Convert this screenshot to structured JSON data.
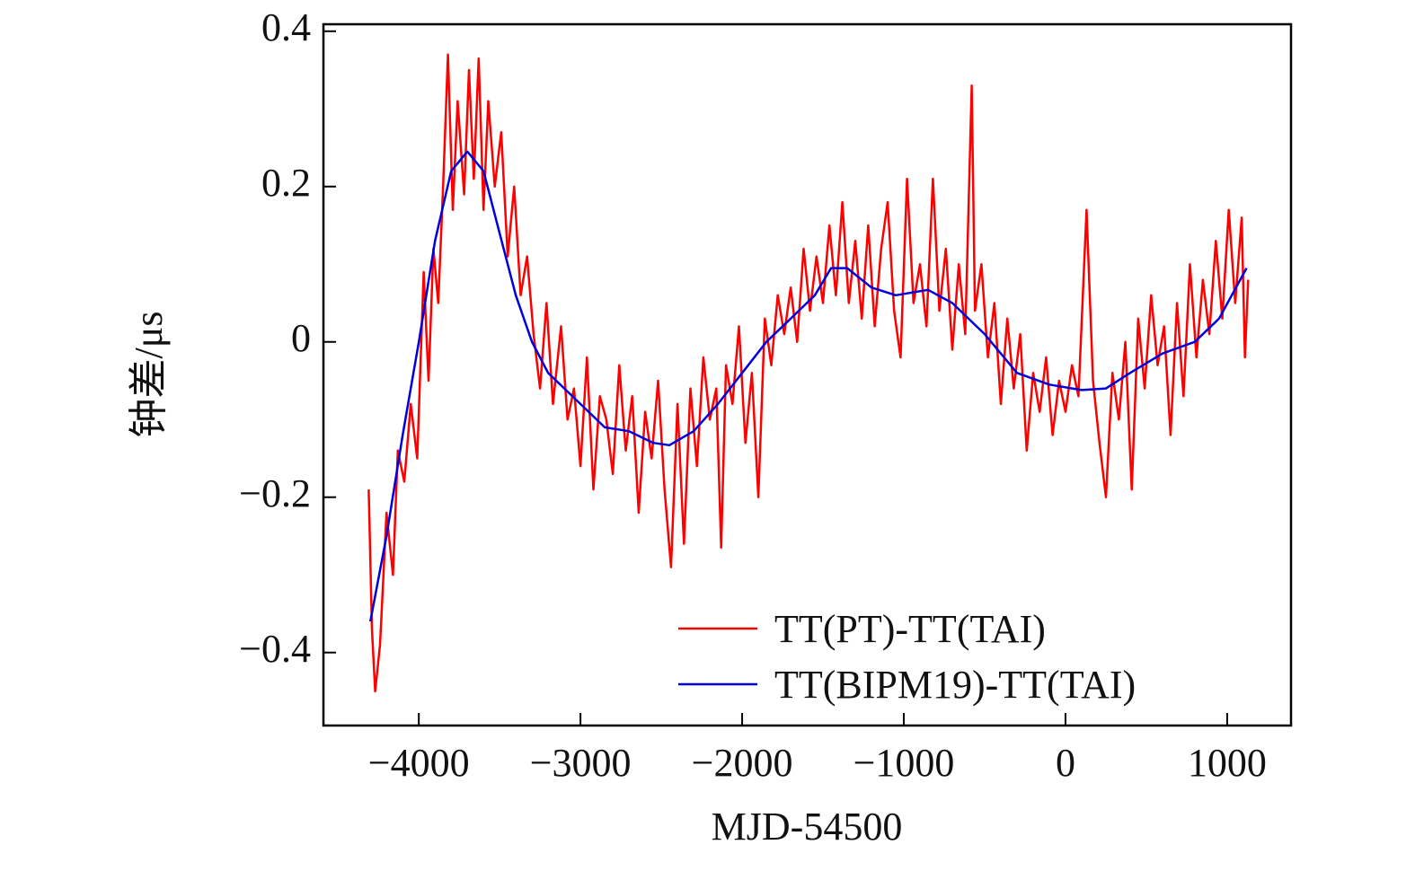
{
  "chart_data": {
    "type": "line",
    "xlabel": "MJD-54500",
    "ylabel": "钟差/μs",
    "xlim": [
      -4590,
      1395
    ],
    "ylim": [
      -0.494,
      0.409
    ],
    "xticks": [
      {
        "value": -4000,
        "label": "−4000"
      },
      {
        "value": -3000,
        "label": "−3000"
      },
      {
        "value": -2000,
        "label": "−2000"
      },
      {
        "value": -1000,
        "label": "−1000"
      },
      0,
      1000
    ],
    "yticks": [
      {
        "value": -0.4,
        "label": "−0.4"
      },
      {
        "value": -0.2,
        "label": "−0.2"
      },
      0,
      0.2,
      0.4
    ],
    "grid": false,
    "legend": "lower right",
    "series": [
      {
        "name": "TT(PT)-TT(TAI)",
        "color": "#ff0000",
        "x": [
          -4310,
          -4290,
          -4270,
          -4240,
          -4200,
          -4160,
          -4130,
          -4090,
          -4050,
          -4010,
          -3970,
          -3940,
          -3910,
          -3880,
          -3850,
          -3820,
          -3790,
          -3760,
          -3720,
          -3690,
          -3660,
          -3630,
          -3600,
          -3570,
          -3530,
          -3490,
          -3450,
          -3410,
          -3370,
          -3330,
          -3290,
          -3250,
          -3210,
          -3170,
          -3120,
          -3080,
          -3040,
          -3000,
          -2960,
          -2920,
          -2880,
          -2840,
          -2800,
          -2760,
          -2720,
          -2680,
          -2640,
          -2600,
          -2560,
          -2520,
          -2480,
          -2440,
          -2400,
          -2360,
          -2320,
          -2280,
          -2240,
          -2200,
          -2160,
          -2130,
          -2100,
          -2060,
          -2020,
          -1980,
          -1940,
          -1900,
          -1860,
          -1820,
          -1780,
          -1740,
          -1700,
          -1660,
          -1620,
          -1580,
          -1540,
          -1500,
          -1460,
          -1420,
          -1380,
          -1340,
          -1300,
          -1260,
          -1220,
          -1180,
          -1140,
          -1100,
          -1060,
          -1020,
          -980,
          -940,
          -900,
          -860,
          -820,
          -780,
          -740,
          -700,
          -660,
          -620,
          -580,
          -560,
          -520,
          -480,
          -440,
          -400,
          -360,
          -320,
          -280,
          -240,
          -200,
          -160,
          -120,
          -80,
          -40,
          0,
          40,
          80,
          130,
          170,
          210,
          250,
          290,
          330,
          370,
          410,
          450,
          490,
          530,
          570,
          610,
          650,
          690,
          730,
          770,
          810,
          850,
          890,
          930,
          970,
          1010,
          1050,
          1090,
          1110,
          1130
        ],
        "values": [
          -0.19,
          -0.37,
          -0.45,
          -0.39,
          -0.22,
          -0.3,
          -0.14,
          -0.18,
          -0.08,
          -0.15,
          0.09,
          -0.05,
          0.12,
          0.05,
          0.2,
          0.37,
          0.17,
          0.31,
          0.19,
          0.35,
          0.21,
          0.365,
          0.17,
          0.31,
          0.2,
          0.27,
          0.11,
          0.2,
          0.06,
          0.11,
          0.01,
          -0.06,
          0.05,
          -0.08,
          0.02,
          -0.1,
          -0.06,
          -0.16,
          -0.02,
          -0.19,
          -0.07,
          -0.1,
          -0.17,
          -0.03,
          -0.14,
          -0.07,
          -0.22,
          -0.09,
          -0.15,
          -0.05,
          -0.19,
          -0.29,
          -0.08,
          -0.26,
          -0.06,
          -0.16,
          -0.02,
          -0.1,
          -0.06,
          -0.265,
          -0.03,
          -0.08,
          0.02,
          -0.13,
          -0.04,
          -0.2,
          0.03,
          -0.03,
          0.06,
          0.01,
          0.07,
          0.0,
          0.12,
          0.04,
          0.11,
          0.05,
          0.15,
          0.06,
          0.18,
          0.05,
          0.13,
          0.03,
          0.15,
          0.02,
          0.12,
          0.18,
          0.04,
          -0.02,
          0.21,
          0.05,
          0.1,
          0.02,
          0.21,
          0.04,
          0.12,
          -0.01,
          0.1,
          0.01,
          0.33,
          0.04,
          0.1,
          -0.02,
          0.05,
          -0.08,
          0.03,
          -0.06,
          0.01,
          -0.14,
          -0.04,
          -0.09,
          -0.02,
          -0.12,
          -0.05,
          -0.09,
          -0.03,
          -0.07,
          0.17,
          -0.05,
          -0.13,
          -0.2,
          -0.04,
          -0.1,
          0.0,
          -0.19,
          0.03,
          -0.06,
          0.06,
          -0.03,
          0.02,
          -0.12,
          0.05,
          -0.07,
          0.1,
          -0.02,
          0.08,
          0.01,
          0.13,
          0.03,
          0.17,
          0.05,
          0.16,
          -0.02,
          0.08
        ]
      },
      {
        "name": "TT(BIPM19)-TT(TAI)",
        "color": "#0000dd",
        "x": [
          -4300,
          -4200,
          -4100,
          -4000,
          -3900,
          -3800,
          -3700,
          -3600,
          -3500,
          -3400,
          -3300,
          -3200,
          -3000,
          -2850,
          -2700,
          -2550,
          -2450,
          -2300,
          -2150,
          -2000,
          -1850,
          -1700,
          -1550,
          -1450,
          -1350,
          -1200,
          -1050,
          -850,
          -700,
          -500,
          -300,
          -100,
          100,
          250,
          400,
          600,
          800,
          950,
          1120
        ],
        "values": [
          -0.36,
          -0.25,
          -0.12,
          0.0,
          0.13,
          0.22,
          0.245,
          0.22,
          0.14,
          0.06,
          0.0,
          -0.04,
          -0.08,
          -0.11,
          -0.115,
          -0.13,
          -0.133,
          -0.115,
          -0.08,
          -0.04,
          0.0,
          0.03,
          0.06,
          0.095,
          0.095,
          0.07,
          0.06,
          0.067,
          0.05,
          0.01,
          -0.04,
          -0.055,
          -0.062,
          -0.06,
          -0.04,
          -0.015,
          0.0,
          0.03,
          0.095
        ]
      }
    ]
  }
}
